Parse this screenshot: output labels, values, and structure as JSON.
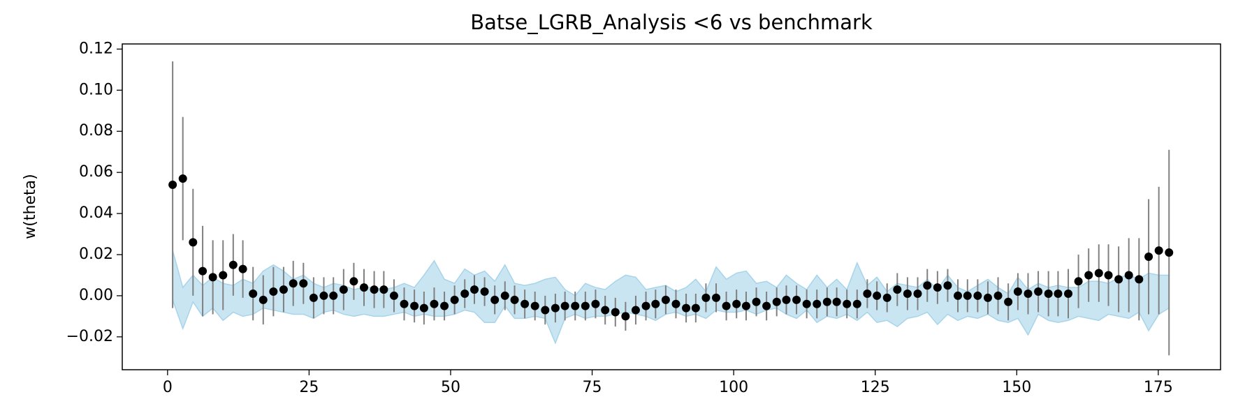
{
  "chart_data": {
    "type": "errorbar",
    "title": "Batse_LGRB_Analysis <6 vs benchmark",
    "ylabel": "w(theta)",
    "x": [
      0.9,
      2.7,
      4.5,
      6.2,
      8.0,
      9.8,
      11.6,
      13.3,
      15.1,
      16.9,
      18.7,
      20.5,
      22.2,
      24.0,
      25.8,
      27.6,
      29.3,
      31.1,
      32.9,
      34.7,
      36.5,
      38.2,
      40.0,
      41.8,
      43.6,
      45.3,
      47.1,
      48.9,
      50.7,
      52.5,
      54.2,
      56.0,
      57.8,
      59.6,
      61.3,
      63.1,
      64.9,
      66.7,
      68.5,
      70.2,
      72.0,
      73.8,
      75.6,
      77.3,
      79.1,
      80.9,
      82.7,
      84.5,
      86.2,
      88.0,
      89.8,
      91.6,
      93.3,
      95.1,
      96.9,
      98.7,
      100.5,
      102.2,
      104.0,
      105.8,
      107.6,
      109.3,
      111.1,
      112.9,
      114.7,
      116.5,
      118.2,
      120.0,
      121.8,
      123.6,
      125.3,
      127.1,
      128.9,
      130.7,
      132.5,
      134.2,
      136.0,
      137.8,
      139.6,
      141.3,
      143.1,
      144.9,
      146.7,
      148.5,
      150.2,
      152.0,
      153.8,
      155.6,
      157.3,
      159.1,
      160.9,
      162.7,
      164.5,
      166.2,
      168.0,
      169.8,
      171.6,
      173.3,
      175.1,
      176.9
    ],
    "series": [
      {
        "color": "#000000",
        "errorbar_color": "#808080",
        "values": [
          0.054,
          0.057,
          0.026,
          0.012,
          0.009,
          0.01,
          0.015,
          0.013,
          0.001,
          -0.002,
          0.002,
          0.003,
          0.006,
          0.006,
          -0.001,
          0.0,
          0.0,
          0.003,
          0.007,
          0.004,
          0.003,
          0.003,
          0.0,
          -0.004,
          -0.005,
          -0.006,
          -0.004,
          -0.005,
          -0.002,
          0.001,
          0.003,
          0.002,
          -0.002,
          0.0,
          -0.002,
          -0.004,
          -0.005,
          -0.007,
          -0.006,
          -0.005,
          -0.005,
          -0.005,
          -0.004,
          -0.007,
          -0.008,
          -0.01,
          -0.007,
          -0.005,
          -0.004,
          -0.002,
          -0.004,
          -0.006,
          -0.006,
          -0.001,
          -0.001,
          -0.005,
          -0.004,
          -0.005,
          -0.003,
          -0.005,
          -0.003,
          -0.002,
          -0.002,
          -0.004,
          -0.004,
          -0.003,
          -0.003,
          -0.004,
          -0.004,
          0.001,
          0.0,
          -0.001,
          0.003,
          0.001,
          0.001,
          0.005,
          0.004,
          0.005,
          0.0,
          0.0,
          0.0,
          -0.001,
          0.0,
          -0.003,
          0.002,
          0.001,
          0.002,
          0.001,
          0.001,
          0.001,
          0.007,
          0.01,
          0.011,
          0.01,
          0.008,
          0.01,
          0.008,
          0.019,
          0.022,
          0.021
        ],
        "errors": [
          0.06,
          0.03,
          0.026,
          0.022,
          0.018,
          0.017,
          0.015,
          0.014,
          0.013,
          0.012,
          0.012,
          0.011,
          0.011,
          0.01,
          0.01,
          0.009,
          0.009,
          0.01,
          0.009,
          0.009,
          0.009,
          0.009,
          0.008,
          0.008,
          0.008,
          0.008,
          0.008,
          0.007,
          0.007,
          0.007,
          0.007,
          0.007,
          0.007,
          0.007,
          0.007,
          0.007,
          0.007,
          0.007,
          0.007,
          0.007,
          0.007,
          0.007,
          0.007,
          0.007,
          0.007,
          0.007,
          0.007,
          0.007,
          0.007,
          0.007,
          0.007,
          0.007,
          0.007,
          0.007,
          0.007,
          0.007,
          0.007,
          0.007,
          0.007,
          0.007,
          0.007,
          0.007,
          0.007,
          0.007,
          0.007,
          0.007,
          0.007,
          0.007,
          0.007,
          0.007,
          0.007,
          0.007,
          0.008,
          0.008,
          0.008,
          0.008,
          0.008,
          0.008,
          0.008,
          0.008,
          0.008,
          0.008,
          0.009,
          0.009,
          0.009,
          0.01,
          0.01,
          0.011,
          0.011,
          0.012,
          0.013,
          0.013,
          0.014,
          0.015,
          0.016,
          0.018,
          0.02,
          0.028,
          0.031,
          0.05
        ]
      }
    ],
    "band": {
      "color": "#a6d4ea",
      "upper": [
        0.022,
        0.004,
        0.01,
        0.005,
        0.009,
        0.006,
        0.005,
        0.008,
        0.006,
        0.012,
        0.015,
        0.012,
        0.008,
        0.01,
        0.006,
        0.004,
        0.006,
        0.005,
        0.003,
        0.004,
        0.004,
        0.003,
        0.004,
        0.006,
        0.004,
        0.01,
        0.017,
        0.008,
        0.006,
        0.013,
        0.01,
        0.012,
        0.007,
        0.015,
        0.006,
        0.005,
        0.006,
        0.008,
        0.009,
        0.003,
        0.0,
        0.006,
        0.004,
        0.003,
        0.007,
        0.01,
        0.009,
        0.003,
        0.004,
        0.005,
        0.002,
        0.004,
        0.008,
        0.002,
        0.014,
        0.008,
        0.011,
        0.012,
        0.006,
        0.007,
        0.004,
        0.01,
        0.006,
        0.003,
        0.01,
        0.004,
        0.008,
        0.003,
        0.016,
        0.005,
        0.009,
        0.002,
        0.006,
        0.005,
        0.004,
        0.008,
        0.003,
        0.01,
        0.004,
        0.002,
        0.005,
        0.008,
        0.004,
        0.001,
        0.009,
        0.003,
        0.006,
        0.004,
        0.005,
        0.004,
        0.004,
        0.007,
        0.007,
        0.006,
        0.009,
        0.01,
        0.008,
        0.011,
        0.01,
        0.01
      ],
      "lower": [
        -0.002,
        -0.016,
        -0.003,
        -0.01,
        -0.006,
        -0.012,
        -0.008,
        -0.01,
        -0.009,
        -0.006,
        -0.007,
        -0.008,
        -0.009,
        -0.009,
        -0.011,
        -0.008,
        -0.007,
        -0.009,
        -0.01,
        -0.009,
        -0.01,
        -0.01,
        -0.009,
        -0.008,
        -0.01,
        -0.009,
        -0.01,
        -0.01,
        -0.009,
        -0.007,
        -0.008,
        -0.013,
        -0.013,
        -0.005,
        -0.011,
        -0.011,
        -0.01,
        -0.011,
        -0.023,
        -0.011,
        -0.009,
        -0.011,
        -0.01,
        -0.01,
        -0.009,
        -0.008,
        -0.009,
        -0.01,
        -0.012,
        -0.009,
        -0.008,
        -0.01,
        -0.009,
        -0.011,
        -0.007,
        -0.008,
        -0.008,
        -0.007,
        -0.009,
        -0.007,
        -0.006,
        -0.009,
        -0.011,
        -0.007,
        -0.013,
        -0.01,
        -0.011,
        -0.009,
        -0.012,
        -0.008,
        -0.013,
        -0.012,
        -0.015,
        -0.011,
        -0.01,
        -0.008,
        -0.014,
        -0.009,
        -0.012,
        -0.01,
        -0.011,
        -0.009,
        -0.012,
        -0.013,
        -0.011,
        -0.019,
        -0.009,
        -0.012,
        -0.013,
        -0.012,
        -0.01,
        -0.011,
        -0.012,
        -0.009,
        -0.01,
        -0.011,
        -0.008,
        -0.017,
        -0.009,
        -0.006
      ]
    },
    "xlim": [
      -8,
      186
    ],
    "ylim": [
      -0.036,
      0.1225
    ],
    "xticks": [
      0,
      25,
      50,
      75,
      100,
      125,
      150,
      175
    ],
    "yticks": [
      {
        "value": -0.02,
        "label": "−0.02"
      },
      {
        "value": 0,
        "label": "0.00"
      },
      0.02,
      0.04,
      0.06,
      0.08,
      {
        "value": 0.1,
        "label": "0.10"
      },
      0.12
    ]
  }
}
